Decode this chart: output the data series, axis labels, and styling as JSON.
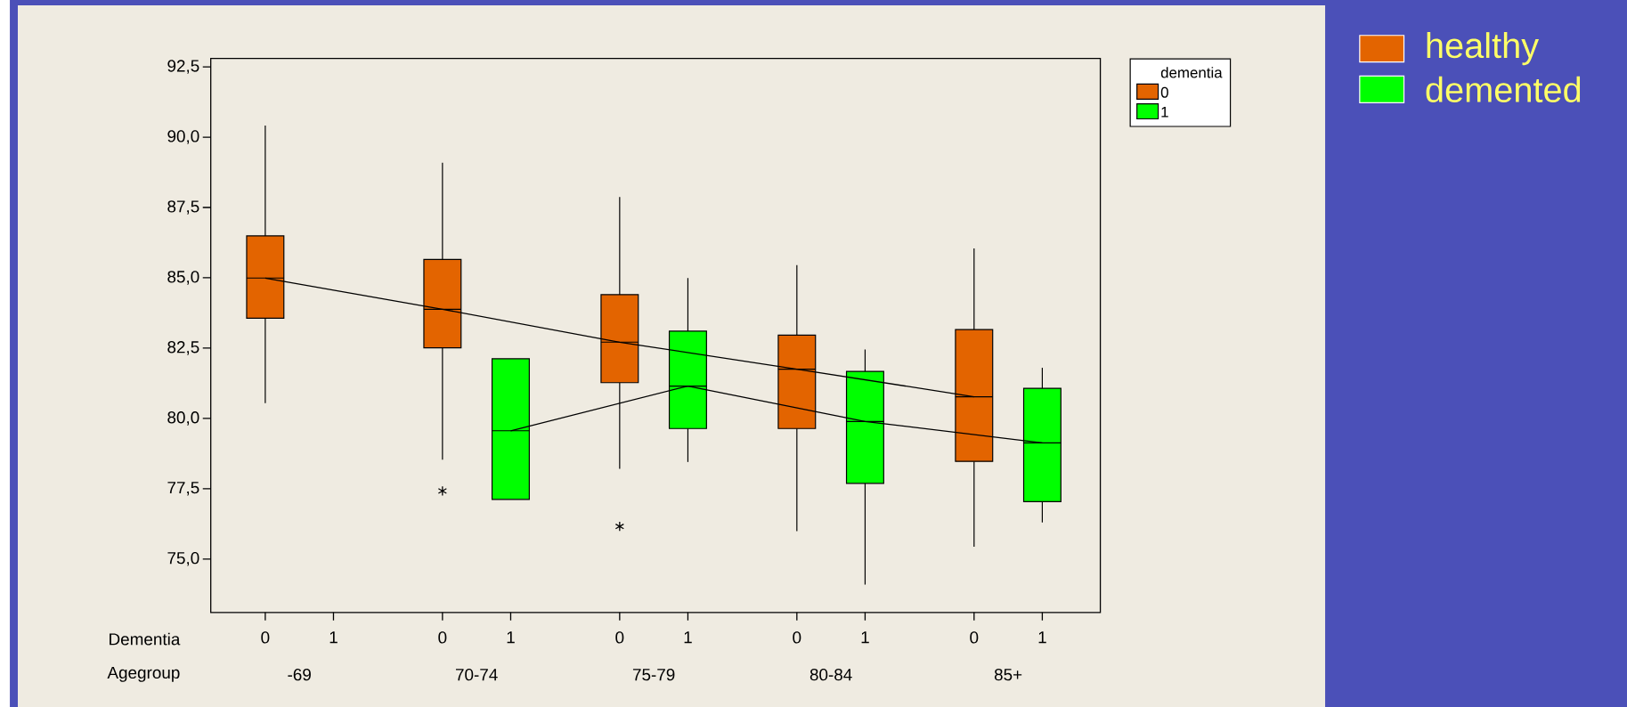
{
  "chart_data": {
    "type": "box",
    "xlabel": "Agegroup",
    "legend_title": "dementia",
    "legend": "top right",
    "categories": [
      "-69",
      "70-74",
      "75-79",
      "80-84",
      "85+"
    ],
    "ylim": [
      73.1,
      92.8
    ],
    "yticks": [
      {
        "value": 75,
        "label": "75,0"
      },
      {
        "value": 77.5,
        "label": "77,5"
      },
      {
        "value": 80,
        "label": "80,0"
      },
      {
        "value": 82.5,
        "label": "82,5"
      },
      {
        "value": 85,
        "label": "85,0"
      },
      {
        "value": 87.5,
        "label": "87,5"
      },
      {
        "value": 90,
        "label": "90,0"
      },
      {
        "value": 92.5,
        "label": "92,5"
      }
    ],
    "annotations": [
      "Dementia",
      "healthy",
      "demented"
    ],
    "series": [
      {
        "name": "0",
        "color": "#e36400",
        "marker": "star",
        "boxes": [
          {
            "low": 80.54,
            "q1": 83.56,
            "median": 84.99,
            "q3": 86.49,
            "high": 90.41
          },
          {
            "low": 78.53,
            "q1": 82.51,
            "median": 83.88,
            "q3": 85.65,
            "high": 89.09,
            "outliers": [
              77.42
            ]
          },
          {
            "low": 78.21,
            "q1": 81.27,
            "median": 82.71,
            "q3": 84.4,
            "high": 87.87,
            "outliers": [
              76.16
            ]
          },
          {
            "low": 75.99,
            "q1": 79.64,
            "median": 81.75,
            "q3": 82.96,
            "high": 85.45
          },
          {
            "low": 75.44,
            "q1": 78.47,
            "median": 80.77,
            "q3": 83.16,
            "high": 86.04
          }
        ]
      },
      {
        "name": "1",
        "color": "#00ff00",
        "boxes": [
          null,
          {
            "low": 77.12,
            "q1": 77.12,
            "median": 79.56,
            "q3": 82.12,
            "high": 82.12
          },
          {
            "low": 78.45,
            "q1": 79.64,
            "median": 81.15,
            "q3": 83.1,
            "high": 84.99
          },
          {
            "low": 74.09,
            "q1": 77.69,
            "median": 79.89,
            "q3": 81.67,
            "high": 82.45
          },
          {
            "low": 76.3,
            "q1": 77.04,
            "median": 79.13,
            "q3": 81.07,
            "high": 81.8
          }
        ]
      },
      {
        "type": "line",
        "color": "#000000",
        "marker": "none",
        "values": [
          84.99,
          83.88,
          82.71,
          81.75,
          80.77
        ]
      },
      {
        "type": "line",
        "color": "#000000",
        "marker": "none",
        "values": [
          null,
          79.56,
          81.15,
          79.89,
          79.13
        ]
      }
    ]
  }
}
